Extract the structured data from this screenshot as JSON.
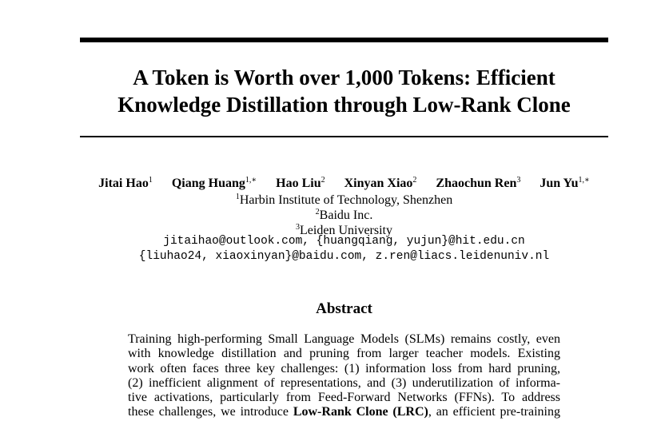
{
  "title": {
    "line1": "A Token is Worth over 1,000 Tokens: Efficient",
    "line2": "Knowledge Distillation through Low-Rank Clone"
  },
  "authors": [
    {
      "name": "Jitai Hao",
      "sup": "1"
    },
    {
      "name": "Qiang Huang",
      "sup": "1,∗"
    },
    {
      "name": "Hao Liu",
      "sup": "2"
    },
    {
      "name": "Xinyan Xiao",
      "sup": "2"
    },
    {
      "name": "Zhaochun Ren",
      "sup": "3"
    },
    {
      "name": "Jun Yu",
      "sup": "1,∗"
    }
  ],
  "affiliations": [
    {
      "sup": "1",
      "name": "Harbin Institute of Technology, Shenzhen"
    },
    {
      "sup": "2",
      "name": "Baidu Inc."
    },
    {
      "sup": "3",
      "name": "Leiden University"
    }
  ],
  "emails": {
    "line1": "jitaihao@outlook.com, {huangqiang, yujun}@hit.edu.cn",
    "line2": "{liuhao24, xiaoxinyan}@baidu.com, z.ren@liacs.leidenuniv.nl"
  },
  "abstract": {
    "heading": "Abstract",
    "lines": [
      "Training high-performing Small Language Models (SLMs) remains costly, even",
      "with knowledge distillation and pruning from larger teacher models. Existing",
      "work often faces three key challenges: (1) information loss from hard pruning,",
      "(2) inefficient alignment of representations, and (3) underutilization of informa-",
      "tive activations, particularly from Feed-Forward Networks (FFNs). To address"
    ],
    "last_line_pre": "these challenges, we introduce ",
    "last_line_bold": "Low-Rank Clone (LRC)",
    "last_line_post": ", an efficient pre-training"
  }
}
